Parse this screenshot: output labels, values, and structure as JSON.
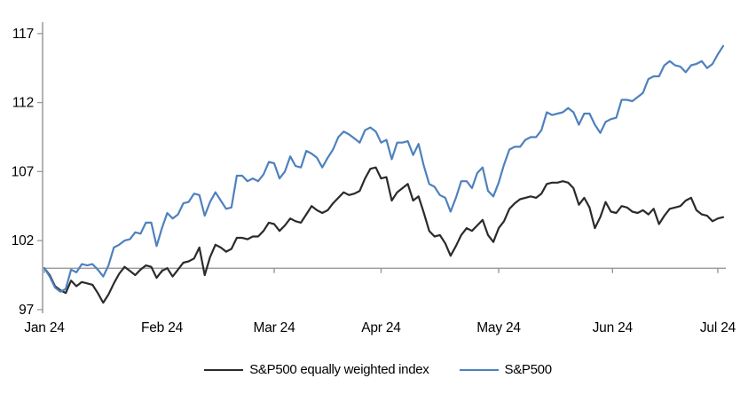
{
  "chart_data": {
    "type": "line",
    "title": "",
    "xlabel": "",
    "ylabel": "",
    "grid": "baseline-only",
    "legend_position": "bottom",
    "x_axis": {
      "tick_labels": [
        "Jan 24",
        "Feb 24",
        "Mar 24",
        "Apr 24",
        "May 24",
        "Jun 24",
        "Jul 24"
      ],
      "tick_point_indices": [
        0,
        22,
        43,
        63,
        85,
        106.3,
        126
      ]
    },
    "y_axis": {
      "ticks": [
        97,
        102,
        107,
        112,
        117
      ],
      "range": [
        97,
        117
      ],
      "baseline": 100
    },
    "series": [
      {
        "name": "S&P500 equally weighted index",
        "color": "#2b2b2b",
        "values": [
          100.0,
          99.5,
          98.7,
          98.4,
          98.2,
          99.1,
          98.7,
          99.0,
          98.9,
          98.8,
          98.2,
          97.5,
          98.1,
          98.9,
          99.6,
          100.1,
          99.8,
          99.5,
          99.9,
          100.2,
          100.1,
          99.3,
          99.8,
          100.0,
          99.4,
          99.9,
          100.4,
          100.5,
          100.7,
          101.5,
          99.5,
          100.8,
          101.7,
          101.5,
          101.2,
          101.4,
          102.2,
          102.2,
          102.1,
          102.3,
          102.3,
          102.7,
          103.3,
          103.2,
          102.7,
          103.1,
          103.6,
          103.4,
          103.3,
          103.9,
          104.5,
          104.2,
          104.0,
          104.2,
          104.7,
          105.1,
          105.5,
          105.3,
          105.4,
          105.6,
          106.5,
          107.2,
          107.3,
          106.5,
          106.6,
          104.9,
          105.5,
          105.8,
          106.1,
          104.9,
          105.2,
          104.0,
          102.7,
          102.3,
          102.4,
          101.8,
          100.9,
          101.6,
          102.4,
          102.9,
          102.7,
          103.1,
          103.5,
          102.4,
          101.9,
          102.9,
          103.4,
          104.3,
          104.7,
          105.0,
          105.1,
          105.2,
          105.1,
          105.4,
          106.1,
          106.2,
          106.2,
          106.3,
          106.2,
          105.8,
          104.6,
          105.1,
          104.4,
          102.9,
          103.7,
          104.8,
          104.1,
          104.0,
          104.5,
          104.4,
          104.1,
          104.0,
          104.2,
          103.9,
          104.3,
          103.2,
          103.8,
          104.3,
          104.4,
          104.5,
          104.9,
          105.1,
          104.2,
          103.9,
          103.8,
          103.4,
          103.6,
          103.7
        ]
      },
      {
        "name": "S&P500",
        "color": "#4e81bd",
        "values": [
          100.0,
          99.4,
          98.6,
          98.3,
          98.5,
          99.9,
          99.7,
          100.3,
          100.2,
          100.3,
          99.9,
          99.4,
          100.2,
          101.5,
          101.7,
          102.0,
          102.1,
          102.6,
          102.5,
          103.3,
          103.3,
          101.6,
          102.9,
          104.0,
          103.6,
          103.9,
          104.7,
          104.8,
          105.4,
          105.3,
          103.8,
          104.8,
          105.5,
          104.9,
          104.3,
          104.4,
          106.7,
          106.7,
          106.3,
          106.5,
          106.3,
          106.8,
          107.7,
          107.6,
          106.5,
          107.0,
          108.1,
          107.4,
          107.3,
          108.5,
          108.3,
          108.0,
          107.3,
          108.0,
          108.6,
          109.5,
          109.9,
          109.7,
          109.4,
          109.1,
          110.0,
          110.2,
          109.9,
          109.1,
          109.3,
          107.9,
          109.1,
          109.1,
          109.2,
          108.2,
          109.0,
          107.4,
          106.1,
          105.9,
          105.3,
          105.1,
          104.1,
          105.1,
          106.3,
          106.3,
          105.8,
          106.9,
          107.3,
          105.6,
          105.2,
          106.2,
          107.5,
          108.6,
          108.8,
          108.8,
          109.3,
          109.5,
          109.5,
          110.0,
          111.3,
          111.1,
          111.2,
          111.3,
          111.6,
          111.3,
          110.4,
          111.2,
          111.2,
          110.4,
          109.8,
          110.6,
          110.8,
          110.9,
          112.2,
          112.2,
          112.1,
          112.4,
          112.7,
          113.7,
          113.9,
          113.9,
          114.7,
          115.0,
          114.7,
          114.6,
          114.2,
          114.7,
          114.8,
          115.0,
          114.5,
          114.8,
          115.5,
          116.1
        ]
      }
    ]
  },
  "colors": {
    "axis_gray": "#9a9a9a",
    "baseline_gray": "#8f8f8f",
    "text": "#000000",
    "background": "#ffffff"
  }
}
